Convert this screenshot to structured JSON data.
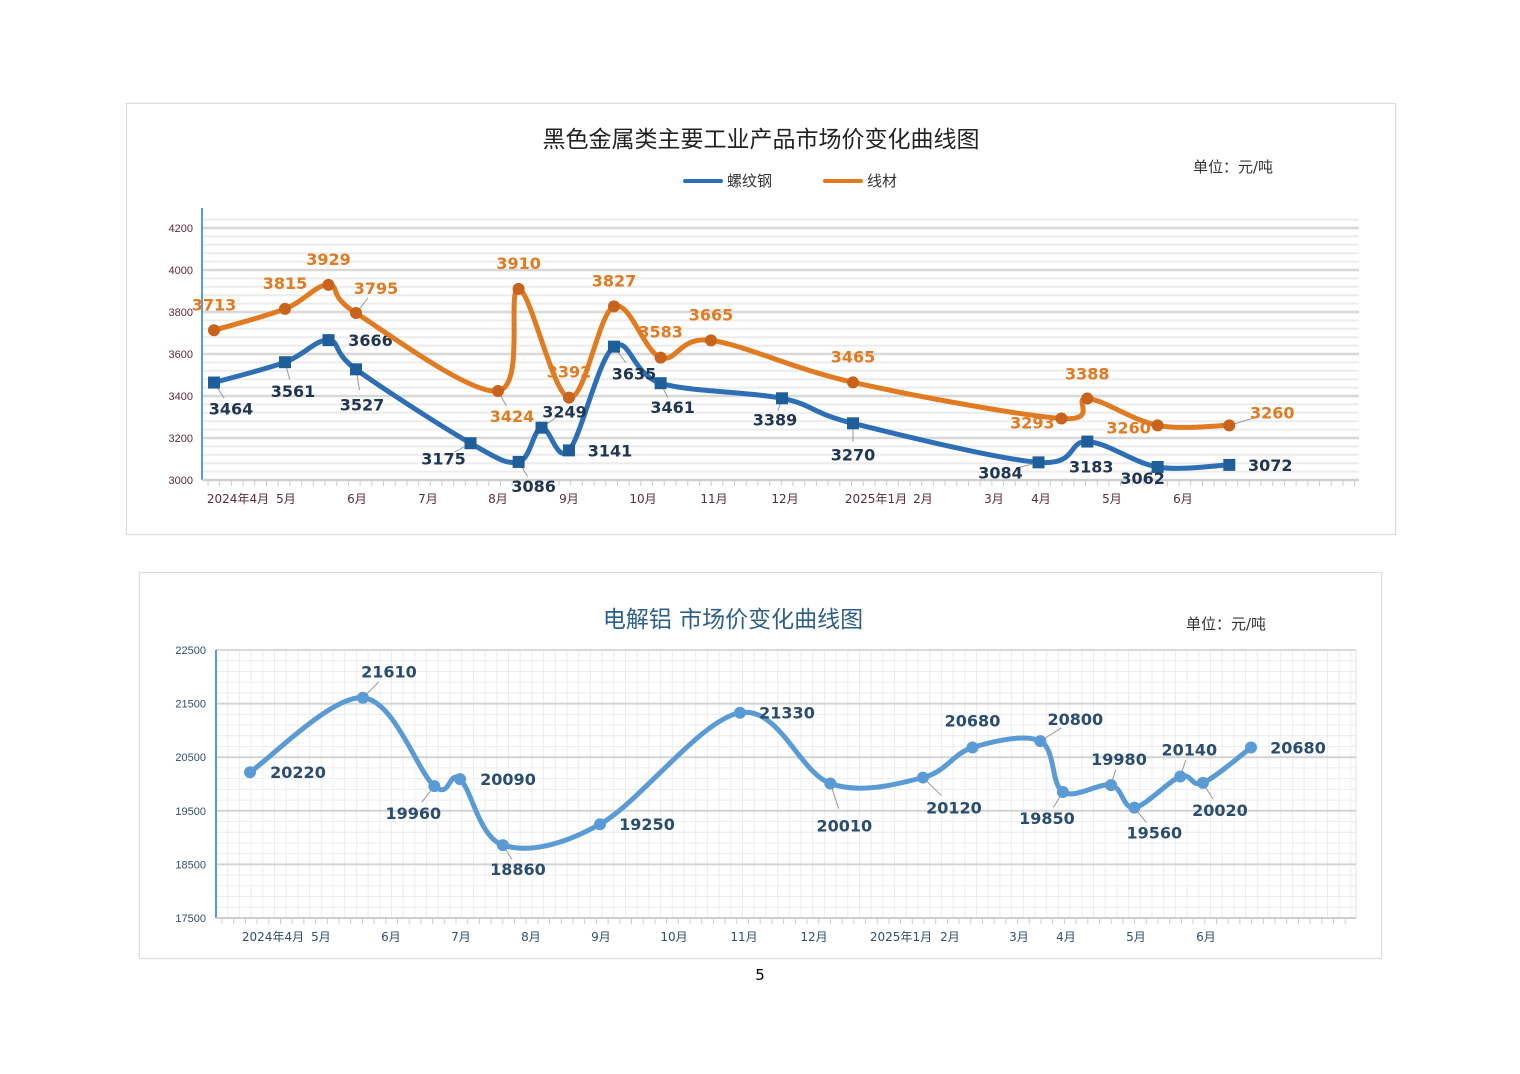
{
  "page_number": "5",
  "chart_data": [
    {
      "type": "line",
      "title": "黑色金属类主要工业产品市场价变化曲线图",
      "unit": "单位：元/吨",
      "ylim": [
        3000,
        4200
      ],
      "yticks": [
        3000,
        3200,
        3400,
        3600,
        3800,
        4000,
        4200
      ],
      "xtick_labels": [
        "2024年4月",
        "5月",
        "6月",
        "7月",
        "8月",
        "9月",
        "10月",
        "11月",
        "12月",
        "2025年1月",
        "2月",
        "3月",
        "4月",
        "5月",
        "6月"
      ],
      "grid": true,
      "legend": "top-center",
      "series": [
        {
          "name": "螺纹钢",
          "color": "#2e6eb5",
          "marker": "square",
          "points": [
            {
              "date": "2024-04-01",
              "value": 3464
            },
            {
              "date": "2024-05-01",
              "value": 3561
            },
            {
              "date": "2024-05-20",
              "value": 3666
            },
            {
              "date": "2024-06-01",
              "value": 3527
            },
            {
              "date": "2024-07-20",
              "value": 3175
            },
            {
              "date": "2024-08-10",
              "value": 3086
            },
            {
              "date": "2024-08-20",
              "value": 3249
            },
            {
              "date": "2024-09-01",
              "value": 3141
            },
            {
              "date": "2024-09-20",
              "value": 3635
            },
            {
              "date": "2024-10-10",
              "value": 3461
            },
            {
              "date": "2024-12-01",
              "value": 3389
            },
            {
              "date": "2025-01-01",
              "value": 3270
            },
            {
              "date": "2025-03-20",
              "value": 3084
            },
            {
              "date": "2025-04-10",
              "value": 3183
            },
            {
              "date": "2025-05-10",
              "value": 3062
            },
            {
              "date": "2025-06-10",
              "value": 3072
            }
          ]
        },
        {
          "name": "线材",
          "color": "#e07b22",
          "marker": "circle",
          "points": [
            {
              "date": "2024-04-01",
              "value": 3713
            },
            {
              "date": "2024-05-01",
              "value": 3815
            },
            {
              "date": "2024-05-20",
              "value": 3929
            },
            {
              "date": "2024-06-01",
              "value": 3795
            },
            {
              "date": "2024-08-01",
              "value": 3424
            },
            {
              "date": "2024-08-10",
              "value": 3910
            },
            {
              "date": "2024-09-01",
              "value": 3392
            },
            {
              "date": "2024-09-20",
              "value": 3827
            },
            {
              "date": "2024-10-10",
              "value": 3583
            },
            {
              "date": "2024-11-01",
              "value": 3665
            },
            {
              "date": "2025-01-01",
              "value": 3465
            },
            {
              "date": "2025-03-30",
              "value": 3293
            },
            {
              "date": "2025-04-10",
              "value": 3388
            },
            {
              "date": "2025-05-10",
              "value": 3260
            },
            {
              "date": "2025-06-10",
              "value": 3260
            }
          ]
        }
      ]
    },
    {
      "type": "line",
      "title": "电解铝  市场价变化曲线图",
      "unit": "单位：元/吨",
      "ylim": [
        17500,
        22500
      ],
      "yticks": [
        17500,
        18500,
        19500,
        20500,
        21500,
        22500
      ],
      "xtick_labels": [
        "2024年4月",
        "5月",
        "6月",
        "7月",
        "8月",
        "9月",
        "10月",
        "11月",
        "12月",
        "2025年1月",
        "2月",
        "3月",
        "4月",
        "5月",
        "6月"
      ],
      "grid": true,
      "series": [
        {
          "color": "#5b9bd5",
          "marker": "circle",
          "points": [
            {
              "date": "2024-04-01",
              "value": 20220
            },
            {
              "date": "2024-05-20",
              "value": 21610
            },
            {
              "date": "2024-06-20",
              "value": 19960
            },
            {
              "date": "2024-07-01",
              "value": 20090
            },
            {
              "date": "2024-07-20",
              "value": 18860
            },
            {
              "date": "2024-09-01",
              "value": 19250
            },
            {
              "date": "2024-11-01",
              "value": 21330
            },
            {
              "date": "2024-12-10",
              "value": 20010
            },
            {
              "date": "2025-01-20",
              "value": 20120
            },
            {
              "date": "2025-02-10",
              "value": 20680
            },
            {
              "date": "2025-03-10",
              "value": 20800
            },
            {
              "date": "2025-03-20",
              "value": 19850
            },
            {
              "date": "2025-04-10",
              "value": 19980
            },
            {
              "date": "2025-04-20",
              "value": 19560
            },
            {
              "date": "2025-05-10",
              "value": 20140
            },
            {
              "date": "2025-05-20",
              "value": 20020
            },
            {
              "date": "2025-06-10",
              "value": 20680
            }
          ]
        }
      ]
    }
  ]
}
